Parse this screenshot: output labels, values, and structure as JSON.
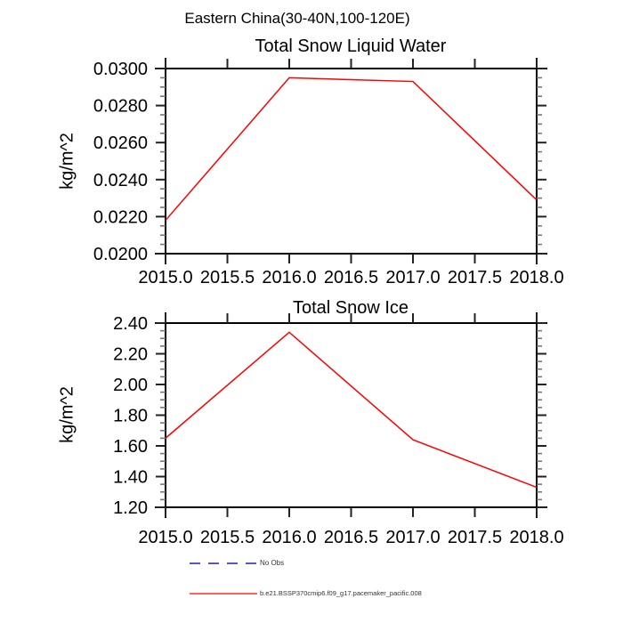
{
  "header": {
    "title": "Eastern China(30-40N,100-120E)"
  },
  "chart_data": [
    {
      "type": "line",
      "title": "Total Snow Liquid Water",
      "xlabel": "",
      "ylabel": "kg/m^2",
      "x": [
        2015,
        2016,
        2017,
        2018
      ],
      "series": [
        {
          "name": "b.e21.BSSP370cmip6.f09_g17.pacemaker_pacific.008",
          "color": "#ff0000",
          "values": [
            0.0218,
            0.0295,
            0.0293,
            0.0229
          ]
        }
      ],
      "xlim": [
        2015.0,
        2018.0
      ],
      "ylim": [
        0.02,
        0.03
      ],
      "xtick_values": [
        2015.0,
        2015.5,
        2016.0,
        2016.5,
        2017.0,
        2017.5,
        2018.0
      ],
      "xtick_labels": [
        "2015.0",
        "2015.5",
        "2016.0",
        "2016.5",
        "2017.0",
        "2017.5",
        "2018.0"
      ],
      "ytick_values": [
        0.02,
        0.022,
        0.024,
        0.026,
        0.028,
        0.03
      ],
      "ytick_labels": [
        "0.0200",
        "0.0220",
        "0.0240",
        "0.0260",
        "0.0280",
        "0.0300"
      ],
      "yminor_step": 0.0005,
      "grid": false,
      "legend_position": "below"
    },
    {
      "type": "line",
      "title": "Total Snow Ice",
      "xlabel": "",
      "ylabel": "kg/m^2",
      "x": [
        2015,
        2016,
        2017,
        2018
      ],
      "series": [
        {
          "name": "b.e21.BSSP370cmip6.f09_g17.pacemaker_pacific.008",
          "color": "#ff0000",
          "values": [
            1.65,
            2.34,
            1.64,
            1.33
          ]
        }
      ],
      "xlim": [
        2015.0,
        2018.0
      ],
      "ylim": [
        1.2,
        2.4
      ],
      "xtick_values": [
        2015.0,
        2015.5,
        2016.0,
        2016.5,
        2017.0,
        2017.5,
        2018.0
      ],
      "xtick_labels": [
        "2015.0",
        "2015.5",
        "2016.0",
        "2016.5",
        "2017.0",
        "2017.5",
        "2018.0"
      ],
      "ytick_values": [
        1.2,
        1.4,
        1.6,
        1.8,
        2.0,
        2.2,
        2.4
      ],
      "ytick_labels": [
        "1.20",
        "1.40",
        "1.60",
        "1.80",
        "2.00",
        "2.20",
        "2.40"
      ],
      "yminor_step": 0.05,
      "grid": false,
      "legend_position": "below"
    }
  ],
  "legend": {
    "items": [
      {
        "label": "No Obs",
        "color": "#5555cc",
        "style": "dashed"
      },
      {
        "label": "b.e21.BSSP370cmip6.f09_g17.pacemaker_pacific.008",
        "color": "#ff0000",
        "style": "solid"
      }
    ]
  },
  "colors": {
    "series_red": "#ff0000",
    "no_obs_blue": "#5555cc",
    "axis": "#000000"
  }
}
